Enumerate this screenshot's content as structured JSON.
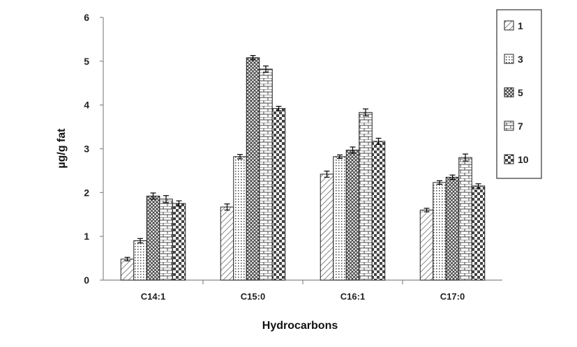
{
  "chart_data": {
    "type": "bar",
    "categories": [
      "C14:1",
      "C15:0",
      "C16:1",
      "C17:0"
    ],
    "series": [
      {
        "name": "1",
        "values": [
          0.48,
          1.67,
          2.42,
          1.6
        ],
        "errors": [
          0.04,
          0.07,
          0.07,
          0.04
        ]
      },
      {
        "name": "3",
        "values": [
          0.9,
          2.82,
          2.82,
          2.23
        ],
        "errors": [
          0.05,
          0.05,
          0.04,
          0.04
        ]
      },
      {
        "name": "5",
        "values": [
          1.92,
          5.08,
          2.97,
          2.35
        ],
        "errors": [
          0.07,
          0.05,
          0.07,
          0.05
        ]
      },
      {
        "name": "7",
        "values": [
          1.85,
          4.82,
          3.83,
          2.8
        ],
        "errors": [
          0.08,
          0.07,
          0.08,
          0.08
        ]
      },
      {
        "name": "10",
        "values": [
          1.75,
          3.92,
          3.17,
          2.15
        ],
        "errors": [
          0.06,
          0.05,
          0.07,
          0.05
        ]
      }
    ],
    "xlabel": "Hydrocarbons",
    "ylabel": "µg/g fat",
    "ylim": [
      0,
      6
    ],
    "yticks": [
      "0",
      "1",
      "2",
      "3",
      "4",
      "5",
      "6"
    ],
    "grid": false,
    "legend_position": "top-right",
    "pattern_names": [
      "diagonal-hatch",
      "dotted",
      "crosshatch",
      "brick",
      "checker"
    ],
    "colors": {
      "ink": "#222222",
      "fill": "#ffffff"
    }
  }
}
